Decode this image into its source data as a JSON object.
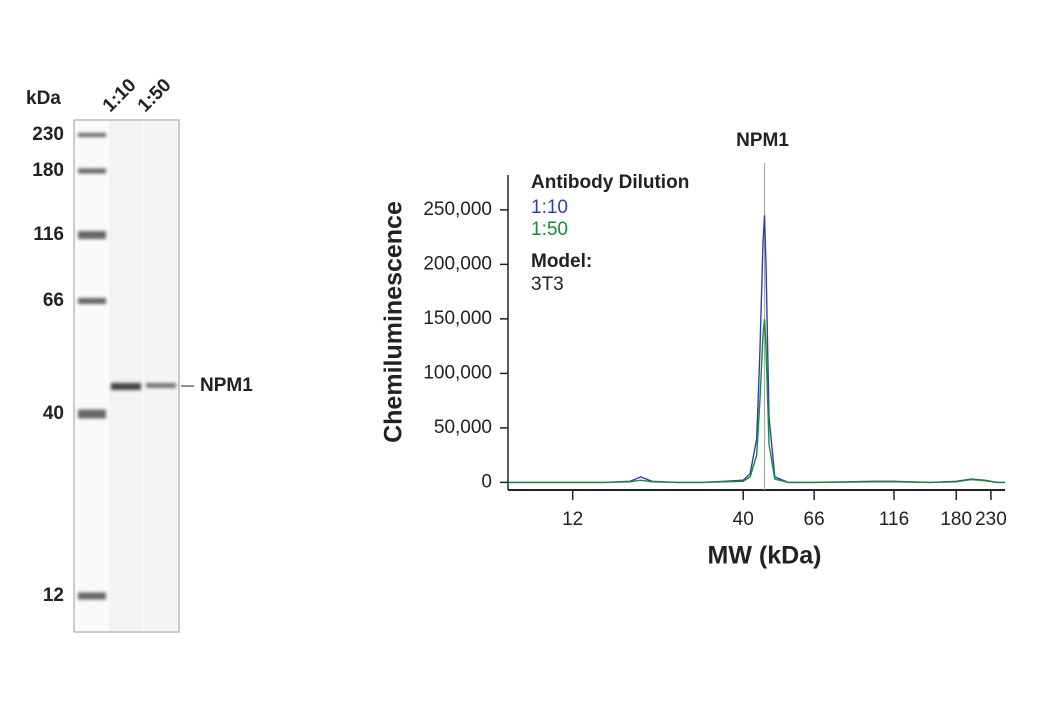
{
  "blot": {
    "unit_label": "kDa",
    "lanes": [
      "1:10",
      "1:50"
    ],
    "markers": [
      230,
      180,
      116,
      66,
      40,
      12
    ],
    "band_label": "NPM1"
  },
  "chart_data": {
    "type": "line",
    "x_label": "MW (kDa)",
    "y_label": "Chemiluminescence",
    "xscale": "log",
    "xlim": [
      7.6,
      254
    ],
    "xticks": [
      12,
      40,
      66,
      116,
      180,
      230
    ],
    "ylim": [
      -7000,
      282000
    ],
    "yticks": [
      0,
      {
        "value": 50000,
        "label": "50,000"
      },
      {
        "value": 100000,
        "label": "100,000"
      },
      {
        "value": 150000,
        "label": "150,000"
      },
      {
        "value": 200000,
        "label": "200,000"
      },
      {
        "value": 250000,
        "label": "250,000"
      }
    ],
    "x": [
      7.6,
      15,
      18,
      19.4,
      21,
      25,
      30,
      35,
      40,
      42,
      44,
      45,
      46,
      46.5,
      47,
      48,
      50,
      55,
      66,
      100,
      116,
      150,
      180,
      200,
      220,
      240,
      254
    ],
    "series": [
      {
        "name": "1:10",
        "color": "#2f3fb0",
        "values": [
          0,
          0,
          1000,
          5000,
          1000,
          0,
          0,
          1000,
          2000,
          8000,
          40000,
          120000,
          220000,
          245000,
          200000,
          60000,
          5000,
          0,
          0,
          1000,
          1000,
          0,
          1000,
          3000,
          2000,
          0,
          0
        ]
      },
      {
        "name": "1:50",
        "color": "#1a8a3a",
        "values": [
          0,
          0,
          500,
          2000,
          500,
          0,
          0,
          500,
          1000,
          5000,
          25000,
          75000,
          135000,
          150000,
          125000,
          35000,
          3000,
          0,
          0,
          500,
          500,
          0,
          500,
          2500,
          1500,
          0,
          0
        ]
      }
    ],
    "legend_title": "Antibody Dilution",
    "model_label": "Model:",
    "model_value": "3T3",
    "annotation": {
      "text": "NPM1",
      "x": 46.5
    }
  }
}
